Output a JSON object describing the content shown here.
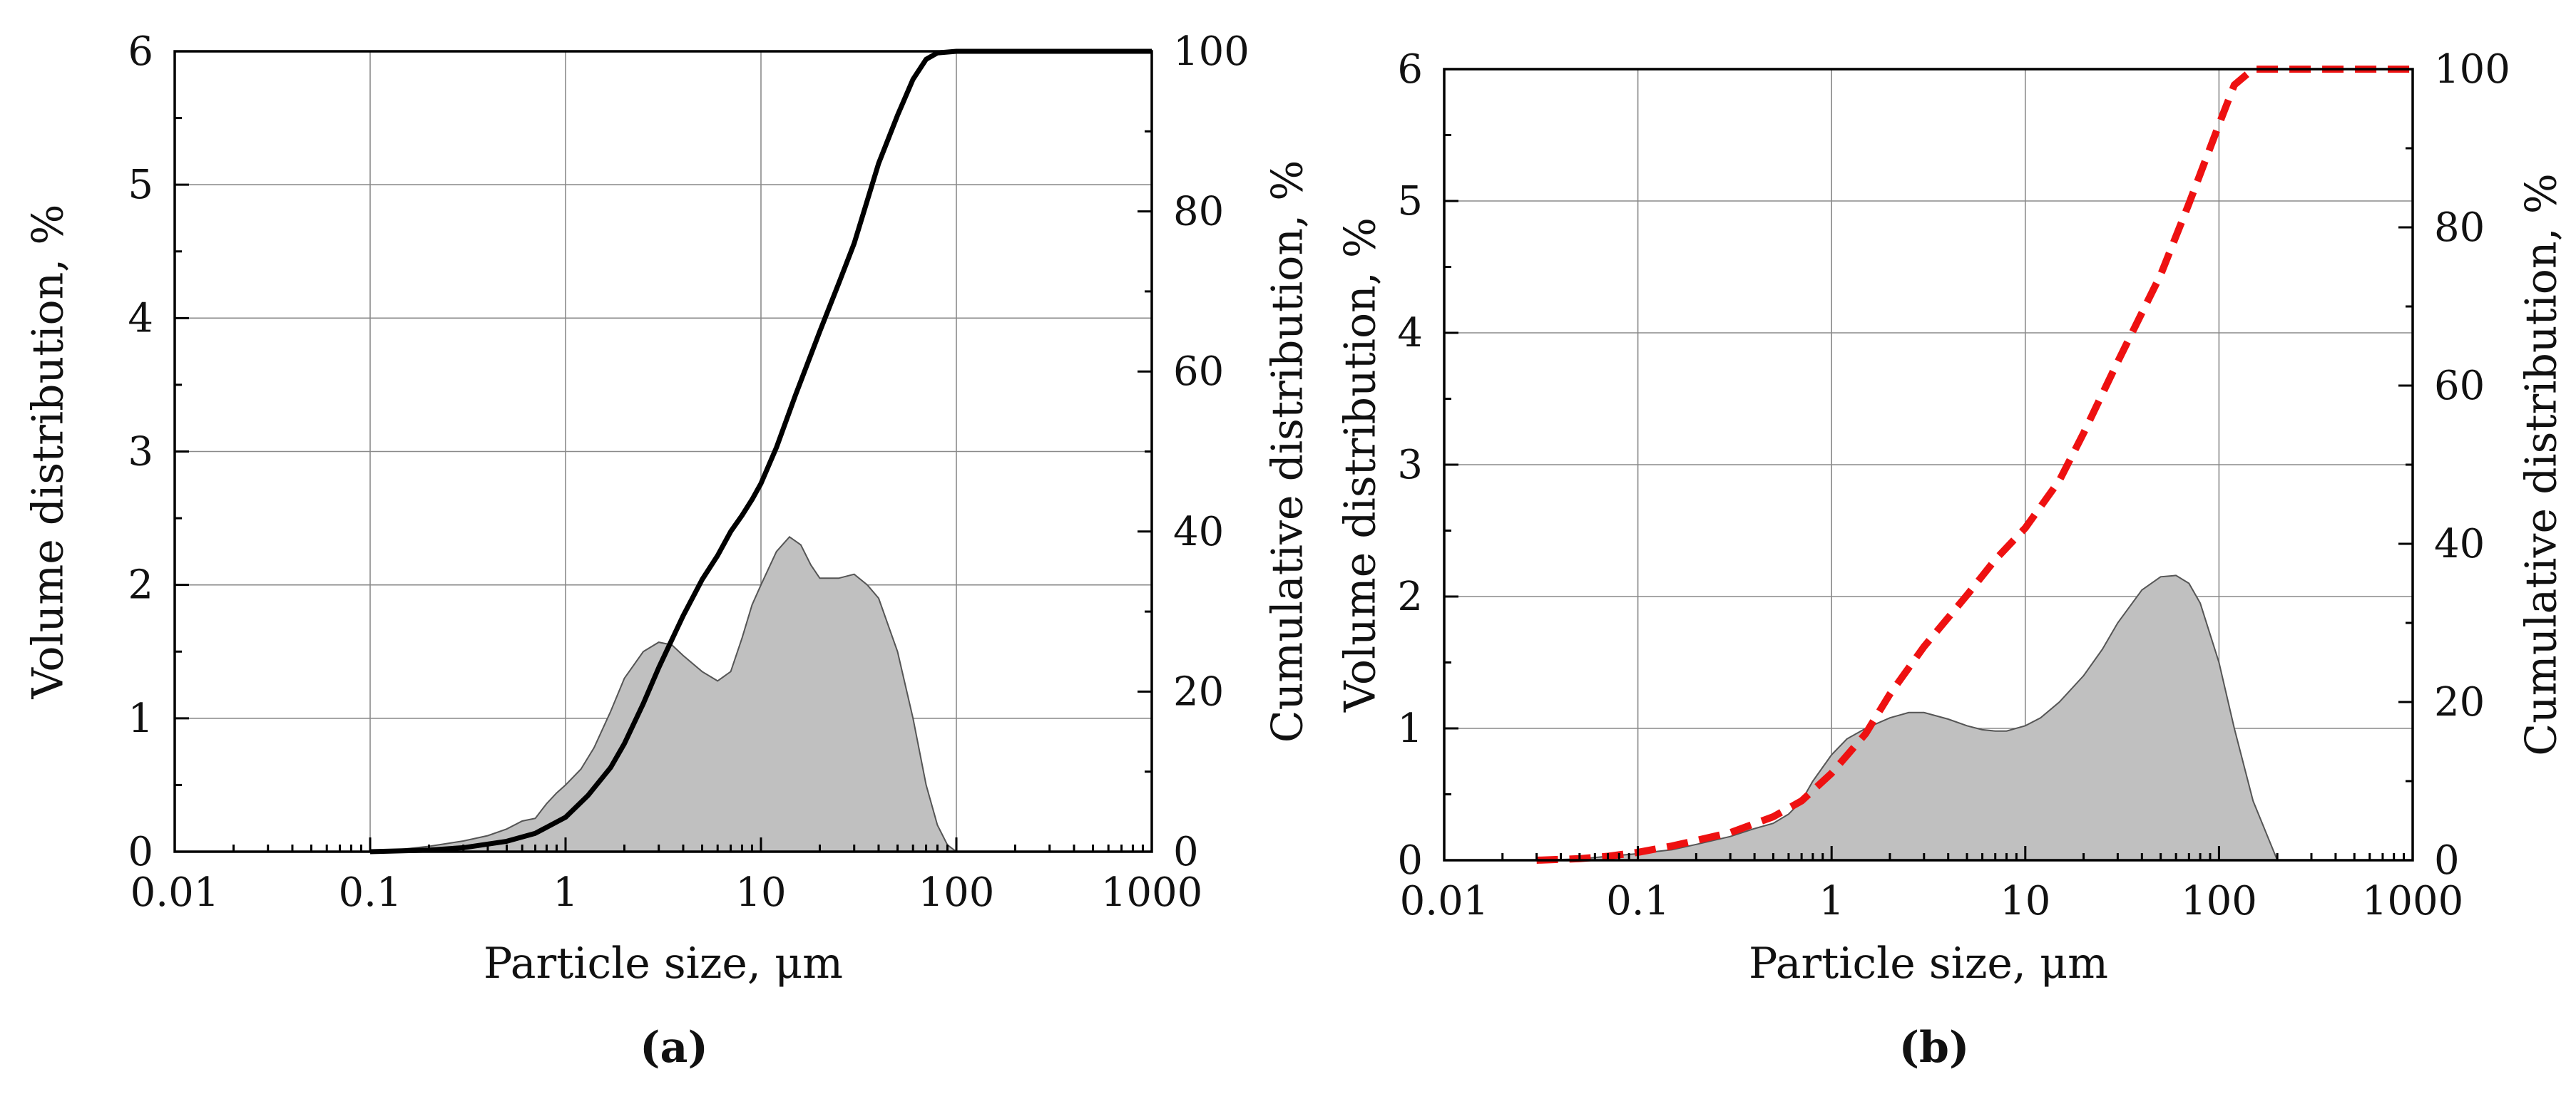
{
  "chart_data": [
    {
      "type": "area",
      "panel_label": "(a)",
      "xlabel": "Particle size, μm",
      "ylabel": "Volume distribution, %",
      "y2label": "Cumulative distribution, %",
      "xscale": "log",
      "xlim": [
        0.01,
        1000
      ],
      "ylim": [
        0,
        6
      ],
      "y2lim": [
        0,
        100
      ],
      "xticks": [
        "0.01",
        "0.1",
        "1",
        "10",
        "100",
        "1000"
      ],
      "yticks": [
        "0",
        "1",
        "2",
        "3",
        "4",
        "5",
        "6"
      ],
      "y2ticks": [
        "0",
        "20",
        "40",
        "60",
        "80",
        "100"
      ],
      "grid": true,
      "series": [
        {
          "kind": "area",
          "axis": "left",
          "color": "#c0c0c0",
          "x": [
            0.1,
            0.15,
            0.2,
            0.3,
            0.4,
            0.5,
            0.6,
            0.7,
            0.8,
            0.9,
            1,
            1.2,
            1.4,
            1.7,
            2,
            2.5,
            3,
            3.5,
            4,
            5,
            6,
            7,
            8,
            9,
            10,
            12,
            14,
            16,
            18,
            20,
            25,
            30,
            35,
            40,
            50,
            60,
            70,
            80,
            90,
            100
          ],
          "y": [
            0,
            0.02,
            0.04,
            0.08,
            0.12,
            0.17,
            0.23,
            0.25,
            0.36,
            0.44,
            0.5,
            0.62,
            0.78,
            1.05,
            1.3,
            1.5,
            1.57,
            1.55,
            1.47,
            1.35,
            1.28,
            1.35,
            1.6,
            1.85,
            2.0,
            2.25,
            2.36,
            2.3,
            2.15,
            2.05,
            2.05,
            2.08,
            2.0,
            1.9,
            1.5,
            1.0,
            0.5,
            0.2,
            0.05,
            0
          ]
        },
        {
          "kind": "line",
          "axis": "right",
          "color": "#000000",
          "style": "solid",
          "x": [
            0.1,
            0.2,
            0.3,
            0.5,
            0.7,
            1,
            1.3,
            1.7,
            2,
            2.5,
            3,
            4,
            5,
            6,
            7,
            8,
            9,
            10,
            12,
            15,
            20,
            25,
            30,
            40,
            50,
            60,
            70,
            80,
            100,
            200,
            500,
            1000
          ],
          "y": [
            0,
            0.2,
            0.5,
            1.3,
            2.3,
            4.3,
            7,
            10.5,
            13.5,
            18.5,
            23,
            29.5,
            34,
            37,
            40,
            42,
            44,
            46,
            50.5,
            57,
            65,
            71,
            76,
            86,
            92,
            96.5,
            99,
            99.8,
            100,
            100,
            100,
            100
          ]
        }
      ]
    },
    {
      "type": "area",
      "panel_label": "(b)",
      "xlabel": "Particle size, μm",
      "ylabel": "Volume distribution, %",
      "y2label": "Cumulative distribution, %",
      "xscale": "log",
      "xlim": [
        0.01,
        1000
      ],
      "ylim": [
        0,
        6
      ],
      "y2lim": [
        0,
        100
      ],
      "xticks": [
        "0.01",
        "0.1",
        "1",
        "10",
        "100",
        "1000"
      ],
      "yticks": [
        "0",
        "1",
        "2",
        "3",
        "4",
        "5",
        "6"
      ],
      "y2ticks": [
        "0",
        "20",
        "40",
        "60",
        "80",
        "100"
      ],
      "grid": true,
      "series": [
        {
          "kind": "area",
          "axis": "left",
          "color": "#c0c0c0",
          "x": [
            0.03,
            0.05,
            0.07,
            0.1,
            0.15,
            0.2,
            0.3,
            0.4,
            0.5,
            0.6,
            0.7,
            0.8,
            1,
            1.2,
            1.5,
            2,
            2.5,
            3,
            4,
            5,
            6,
            7,
            8,
            10,
            12,
            15,
            20,
            25,
            30,
            40,
            50,
            60,
            70,
            80,
            100,
            120,
            150,
            200
          ],
          "y": [
            0,
            0.01,
            0.03,
            0.05,
            0.08,
            0.12,
            0.18,
            0.24,
            0.28,
            0.35,
            0.45,
            0.6,
            0.8,
            0.92,
            1.0,
            1.08,
            1.12,
            1.12,
            1.07,
            1.02,
            0.99,
            0.98,
            0.98,
            1.02,
            1.08,
            1.2,
            1.4,
            1.6,
            1.8,
            2.05,
            2.15,
            2.16,
            2.1,
            1.95,
            1.5,
            1.0,
            0.45,
            0
          ]
        },
        {
          "kind": "line",
          "axis": "right",
          "color": "#ee1111",
          "style": "dashed",
          "x": [
            0.03,
            0.05,
            0.07,
            0.1,
            0.15,
            0.2,
            0.3,
            0.5,
            0.7,
            1,
            1.5,
            2,
            3,
            5,
            7,
            10,
            15,
            20,
            30,
            50,
            70,
            100,
            120,
            150,
            200,
            500,
            1000
          ],
          "y": [
            0,
            0.2,
            0.5,
            1,
            1.8,
            2.5,
            3.5,
            5.5,
            7.5,
            11,
            16,
            21,
            27,
            33.5,
            38,
            42,
            48,
            54,
            63,
            74,
            83,
            93,
            98,
            100,
            100,
            100,
            100
          ]
        }
      ]
    }
  ]
}
